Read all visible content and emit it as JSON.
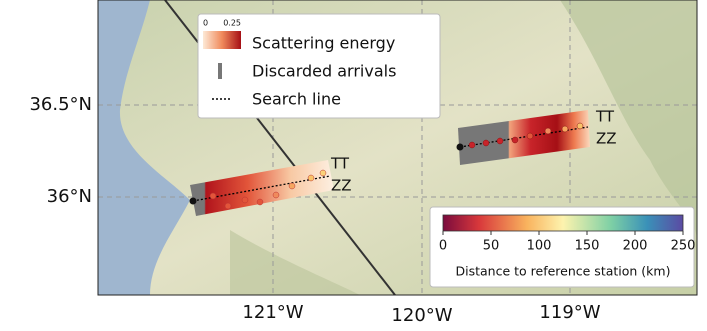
{
  "axes": {
    "y_labels": [
      "36.5°N",
      "36°N"
    ],
    "x_labels": [
      "121°W",
      "120°W",
      "119°W"
    ]
  },
  "legend": {
    "scale_ticks": [
      "0",
      "0.25"
    ],
    "items": [
      "Scattering energy",
      "Discarded arrivals",
      "Search line"
    ]
  },
  "profiles": [
    {
      "labels": [
        "TT",
        "ZZ"
      ]
    },
    {
      "labels": [
        "TT",
        "ZZ"
      ]
    }
  ],
  "colorbar": {
    "ticks": [
      0,
      50,
      100,
      150,
      200,
      250
    ],
    "label": "Distance to reference station (km)"
  }
}
